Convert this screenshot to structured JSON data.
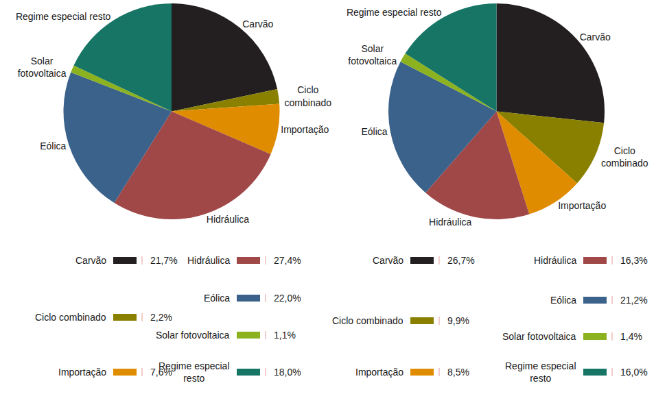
{
  "chart_data": [
    {
      "type": "pie",
      "categories": [
        "Carvão",
        "Ciclo combinado",
        "Importação",
        "Hidráulica",
        "Eólica",
        "Solar fotovoltaica",
        "Regime especial resto"
      ],
      "values": [
        21.7,
        2.2,
        7.6,
        27.4,
        22.0,
        1.1,
        18.0
      ],
      "value_labels": [
        "21,7%",
        "2,2%",
        "7,6%",
        "27,4%",
        "22,0%",
        "1,1%",
        "18,0%"
      ],
      "colors": [
        "#231f20",
        "#8a8000",
        "#e08c00",
        "#a04848",
        "#3a628a",
        "#8db21f",
        "#167565"
      ]
    },
    {
      "type": "pie",
      "categories": [
        "Carvão",
        "Ciclo combinado",
        "Importação",
        "Hidráulica",
        "Eólica",
        "Solar fotovoltaica",
        "Regime especial resto"
      ],
      "values": [
        26.7,
        9.9,
        8.5,
        16.3,
        21.2,
        1.4,
        16.0
      ],
      "value_labels": [
        "26,7%",
        "9,9%",
        "8,5%",
        "16,3%",
        "21,2%",
        "1,4%",
        "16,0%"
      ],
      "colors": [
        "#231f20",
        "#8a8000",
        "#e08c00",
        "#a04848",
        "#3a628a",
        "#8db21f",
        "#167565"
      ]
    }
  ]
}
